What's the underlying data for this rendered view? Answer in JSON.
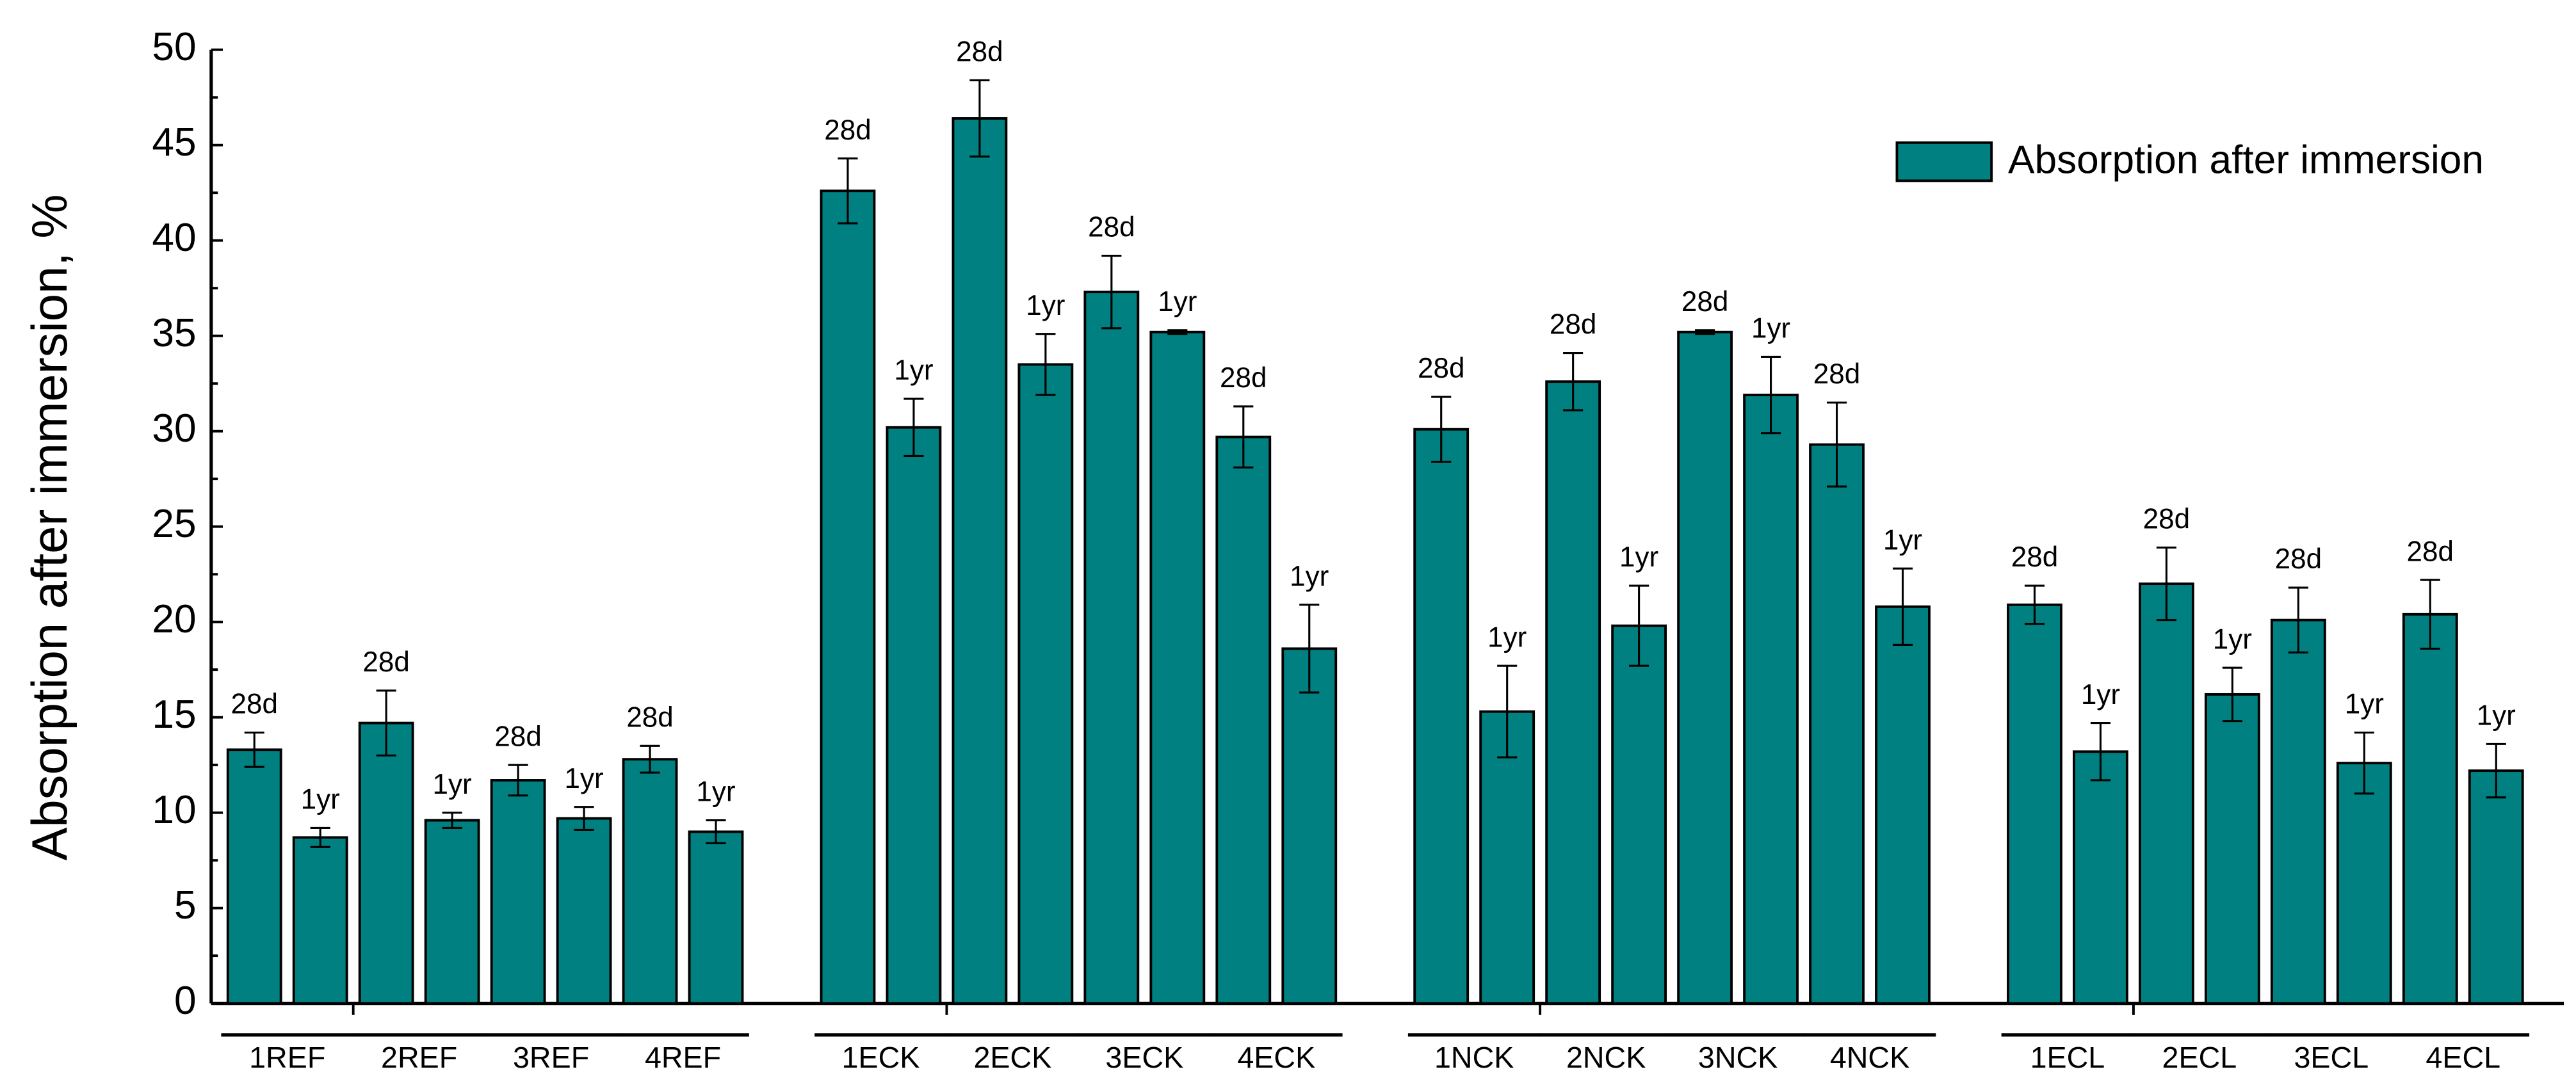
{
  "chart_data": {
    "type": "bar",
    "y_label": "Absorption after immersion, %",
    "legend": "Absorption after immersion",
    "color": "#008080",
    "groups": [
      "1REF",
      "2REF",
      "3REF",
      "4REF",
      "1ECK",
      "2ECK",
      "3ECK",
      "4ECK",
      "1NCK",
      "2NCK",
      "3NCK",
      "4NCK",
      "1ECL",
      "2ECL",
      "3ECL",
      "4ECL"
    ],
    "categories": [
      "28d",
      "1yr",
      "28d",
      "1yr",
      "28d",
      "1yr",
      "28d",
      "1yr",
      "28d",
      "1yr",
      "28d",
      "1yr",
      "28d",
      "1yr",
      "28d",
      "1yr",
      "28d",
      "1yr",
      "28d",
      "1yr",
      "28d",
      "1yr",
      "28d",
      "1yr",
      "28d",
      "1yr",
      "28d",
      "1yr",
      "28d",
      "1yr",
      "28d",
      "1yr"
    ],
    "values": [
      13.3,
      8.7,
      14.7,
      9.6,
      11.7,
      9.7,
      12.8,
      9.0,
      42.6,
      30.2,
      46.4,
      33.5,
      37.3,
      35.2,
      29.7,
      18.6,
      30.1,
      15.3,
      32.6,
      19.8,
      35.2,
      31.9,
      29.3,
      20.8,
      20.9,
      13.2,
      22.0,
      16.2,
      20.1,
      12.6,
      20.4,
      12.2
    ],
    "errors": [
      0.9,
      0.5,
      1.7,
      0.4,
      0.8,
      0.6,
      0.7,
      0.6,
      1.7,
      1.5,
      2.0,
      1.6,
      1.9,
      0.1,
      1.6,
      2.3,
      1.7,
      2.4,
      1.5,
      2.1,
      0.1,
      2.0,
      2.2,
      2.0,
      1.0,
      1.5,
      1.9,
      1.4,
      1.7,
      1.6,
      1.8,
      1.4
    ],
    "ylim": [
      0,
      50
    ],
    "yticks": [
      0,
      5,
      10,
      15,
      20,
      25,
      30,
      35,
      40,
      45,
      50
    ]
  }
}
